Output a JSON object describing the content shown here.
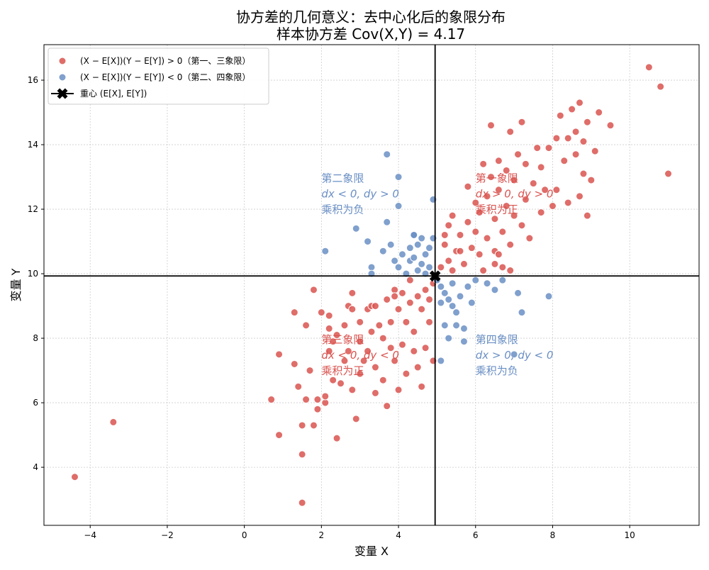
{
  "chart_data": {
    "type": "scatter",
    "title": "协方差的几何意义：去中心化后的象限分布",
    "subtitle": "样本协方差 Cov(X,Y) = 4.17",
    "xlabel": "变量 X",
    "ylabel": "变量 Y",
    "xlim": [
      -5.2,
      11.8
    ],
    "ylim": [
      2.2,
      17.1
    ],
    "xticks": [
      -4,
      -2,
      0,
      2,
      4,
      6,
      8,
      10
    ],
    "yticks": [
      4,
      6,
      8,
      10,
      12,
      14,
      16
    ],
    "grid": true,
    "legend_position": "top-left",
    "centroid": {
      "x": 4.95,
      "y": 9.93
    },
    "colors": {
      "positive": "#d9534f",
      "negative": "#6a8fc4",
      "centroid": "#000000",
      "grid": "#cccccc"
    },
    "legend": [
      {
        "label": "(X − E[X])(Y − E[Y]) > 0（第一、三象限）",
        "kind": "positive"
      },
      {
        "label": "(X − E[X])(Y − E[Y]) < 0（第二、四象限）",
        "kind": "negative"
      },
      {
        "label": "重心 (E[X], E[Y])",
        "kind": "centroid"
      }
    ],
    "quadrant_labels": [
      {
        "lines": [
          "第二象限",
          "dx < 0, dy > 0",
          "乘积为负"
        ],
        "x": 2.0,
        "y": 12.85,
        "kind": "negative"
      },
      {
        "lines": [
          "第一象限",
          "dx > 0, dy > 0",
          "乘积为正"
        ],
        "x": 6.0,
        "y": 12.85,
        "kind": "positive"
      },
      {
        "lines": [
          "第三象限",
          "dx < 0, dy < 0",
          "乘积为正"
        ],
        "x": 2.0,
        "y": 7.85,
        "kind": "positive"
      },
      {
        "lines": [
          "第四象限",
          "dx > 0, dy < 0",
          "乘积为负"
        ],
        "x": 6.0,
        "y": 7.85,
        "kind": "negative"
      }
    ],
    "series": [
      {
        "name": "(X − E[X])(Y − E[Y]) > 0（第一、三象限）",
        "kind": "positive",
        "points": [
          [
            -4.4,
            3.7
          ],
          [
            -3.4,
            5.4
          ],
          [
            0.7,
            6.1
          ],
          [
            0.9,
            7.5
          ],
          [
            0.9,
            5.0
          ],
          [
            1.3,
            7.2
          ],
          [
            1.4,
            6.5
          ],
          [
            1.5,
            5.3
          ],
          [
            1.5,
            4.4
          ],
          [
            1.5,
            2.9
          ],
          [
            1.6,
            8.4
          ],
          [
            1.6,
            6.1
          ],
          [
            1.7,
            7.0
          ],
          [
            1.8,
            5.3
          ],
          [
            1.9,
            5.8
          ],
          [
            1.9,
            6.1
          ],
          [
            1.3,
            8.8
          ],
          [
            1.8,
            9.5
          ],
          [
            2.0,
            8.8
          ],
          [
            2.1,
            6.0
          ],
          [
            2.1,
            6.2
          ],
          [
            2.2,
            7.6
          ],
          [
            2.2,
            8.3
          ],
          [
            2.2,
            8.7
          ],
          [
            2.3,
            6.7
          ],
          [
            2.3,
            7.9
          ],
          [
            2.4,
            8.1
          ],
          [
            2.4,
            4.9
          ],
          [
            2.5,
            6.6
          ],
          [
            2.6,
            7.3
          ],
          [
            2.6,
            8.4
          ],
          [
            2.7,
            9.0
          ],
          [
            2.7,
            7.6
          ],
          [
            2.8,
            8.9
          ],
          [
            2.8,
            6.4
          ],
          [
            2.9,
            5.5
          ],
          [
            3.0,
            6.9
          ],
          [
            3.0,
            7.9
          ],
          [
            3.0,
            8.5
          ],
          [
            3.1,
            7.3
          ],
          [
            3.2,
            8.9
          ],
          [
            3.2,
            7.6
          ],
          [
            3.3,
            8.2
          ],
          [
            3.3,
            9.0
          ],
          [
            3.4,
            6.3
          ],
          [
            3.4,
            7.1
          ],
          [
            3.5,
            8.4
          ],
          [
            3.6,
            6.7
          ],
          [
            3.6,
            8.0
          ],
          [
            3.7,
            9.2
          ],
          [
            3.7,
            5.9
          ],
          [
            3.8,
            7.7
          ],
          [
            3.8,
            8.5
          ],
          [
            3.9,
            9.5
          ],
          [
            3.9,
            7.3
          ],
          [
            4.0,
            6.4
          ],
          [
            4.0,
            8.9
          ],
          [
            4.1,
            7.8
          ],
          [
            4.1,
            9.4
          ],
          [
            4.2,
            6.9
          ],
          [
            4.2,
            8.5
          ],
          [
            4.3,
            9.1
          ],
          [
            4.4,
            7.6
          ],
          [
            4.4,
            8.2
          ],
          [
            4.5,
            9.3
          ],
          [
            4.5,
            7.1
          ],
          [
            4.6,
            6.5
          ],
          [
            4.6,
            8.9
          ],
          [
            4.7,
            9.5
          ],
          [
            4.7,
            7.7
          ],
          [
            4.8,
            8.5
          ],
          [
            4.8,
            9.2
          ],
          [
            4.9,
            7.3
          ],
          [
            4.9,
            9.7
          ],
          [
            4.3,
            9.8
          ],
          [
            3.9,
            9.3
          ],
          [
            3.4,
            9.0
          ],
          [
            2.8,
            9.4
          ],
          [
            5.1,
            10.2
          ],
          [
            5.2,
            10.9
          ],
          [
            5.3,
            11.5
          ],
          [
            5.3,
            10.4
          ],
          [
            5.4,
            11.8
          ],
          [
            5.5,
            10.7
          ],
          [
            5.6,
            11.2
          ],
          [
            5.7,
            10.3
          ],
          [
            5.8,
            11.6
          ],
          [
            5.8,
            12.7
          ],
          [
            5.9,
            10.8
          ],
          [
            6.0,
            11.3
          ],
          [
            6.0,
            12.2
          ],
          [
            6.1,
            10.6
          ],
          [
            6.1,
            11.9
          ],
          [
            6.2,
            13.4
          ],
          [
            6.2,
            10.1
          ],
          [
            6.3,
            11.1
          ],
          [
            6.3,
            12.4
          ],
          [
            6.4,
            13.0
          ],
          [
            6.4,
            14.6
          ],
          [
            6.5,
            10.7
          ],
          [
            6.5,
            11.7
          ],
          [
            6.6,
            12.6
          ],
          [
            6.6,
            13.5
          ],
          [
            6.7,
            10.2
          ],
          [
            6.7,
            11.3
          ],
          [
            6.8,
            12.1
          ],
          [
            6.8,
            13.2
          ],
          [
            6.9,
            10.9
          ],
          [
            6.9,
            14.4
          ],
          [
            7.0,
            11.8
          ],
          [
            7.0,
            12.9
          ],
          [
            7.1,
            13.7
          ],
          [
            7.2,
            11.5
          ],
          [
            7.2,
            14.7
          ],
          [
            7.3,
            12.3
          ],
          [
            7.3,
            13.4
          ],
          [
            7.4,
            11.1
          ],
          [
            7.5,
            12.8
          ],
          [
            7.6,
            13.9
          ],
          [
            7.7,
            11.9
          ],
          [
            7.7,
            13.3
          ],
          [
            7.8,
            12.6
          ],
          [
            7.9,
            13.9
          ],
          [
            8.0,
            12.1
          ],
          [
            8.1,
            14.2
          ],
          [
            8.1,
            12.6
          ],
          [
            8.2,
            14.9
          ],
          [
            8.3,
            13.5
          ],
          [
            8.4,
            12.2
          ],
          [
            8.4,
            14.2
          ],
          [
            8.5,
            15.1
          ],
          [
            8.6,
            13.7
          ],
          [
            8.6,
            14.4
          ],
          [
            8.7,
            12.4
          ],
          [
            8.7,
            15.3
          ],
          [
            8.8,
            13.1
          ],
          [
            8.8,
            14.1
          ],
          [
            8.9,
            11.8
          ],
          [
            8.9,
            14.7
          ],
          [
            9.0,
            12.9
          ],
          [
            9.1,
            13.8
          ],
          [
            9.2,
            15.0
          ],
          [
            9.5,
            14.6
          ],
          [
            10.5,
            16.4
          ],
          [
            10.8,
            15.8
          ],
          [
            11.0,
            13.1
          ],
          [
            5.4,
            10.1
          ],
          [
            5.6,
            10.7
          ],
          [
            6.5,
            10.3
          ],
          [
            6.9,
            10.1
          ],
          [
            5.2,
            11.2
          ],
          [
            6.6,
            10.6
          ]
        ]
      },
      {
        "name": "(X − E[X])(Y − E[Y]) < 0（第二、四象限）",
        "kind": "negative",
        "points": [
          [
            2.1,
            10.7
          ],
          [
            2.9,
            11.4
          ],
          [
            3.2,
            11.0
          ],
          [
            3.3,
            10.2
          ],
          [
            3.3,
            10.0
          ],
          [
            3.6,
            10.7
          ],
          [
            3.7,
            13.7
          ],
          [
            3.7,
            11.6
          ],
          [
            3.8,
            10.9
          ],
          [
            3.9,
            10.4
          ],
          [
            4.0,
            12.1
          ],
          [
            4.0,
            13.0
          ],
          [
            4.0,
            10.2
          ],
          [
            4.1,
            10.6
          ],
          [
            4.2,
            10.0
          ],
          [
            4.3,
            10.4
          ],
          [
            4.3,
            10.8
          ],
          [
            4.4,
            11.2
          ],
          [
            4.4,
            10.5
          ],
          [
            4.5,
            10.9
          ],
          [
            4.5,
            10.1
          ],
          [
            4.6,
            11.1
          ],
          [
            4.6,
            10.3
          ],
          [
            4.7,
            10.6
          ],
          [
            4.7,
            10.0
          ],
          [
            4.8,
            10.8
          ],
          [
            4.8,
            10.2
          ],
          [
            4.9,
            12.3
          ],
          [
            4.9,
            11.1
          ],
          [
            4.4,
            11.2
          ],
          [
            5.0,
            9.8
          ],
          [
            5.1,
            9.1
          ],
          [
            5.1,
            7.3
          ],
          [
            5.2,
            8.4
          ],
          [
            5.2,
            9.4
          ],
          [
            5.3,
            8.0
          ],
          [
            5.4,
            9.0
          ],
          [
            5.4,
            9.7
          ],
          [
            5.5,
            8.8
          ],
          [
            5.6,
            9.3
          ],
          [
            5.7,
            8.3
          ],
          [
            5.7,
            7.9
          ],
          [
            5.8,
            9.6
          ],
          [
            5.9,
            9.1
          ],
          [
            6.0,
            9.8
          ],
          [
            6.3,
            9.7
          ],
          [
            6.5,
            9.5
          ],
          [
            6.7,
            9.8
          ],
          [
            7.0,
            7.5
          ],
          [
            7.1,
            9.4
          ],
          [
            7.2,
            8.8
          ],
          [
            7.9,
            9.3
          ],
          [
            5.1,
            9.6
          ],
          [
            5.3,
            9.2
          ],
          [
            5.5,
            8.4
          ]
        ]
      }
    ]
  }
}
